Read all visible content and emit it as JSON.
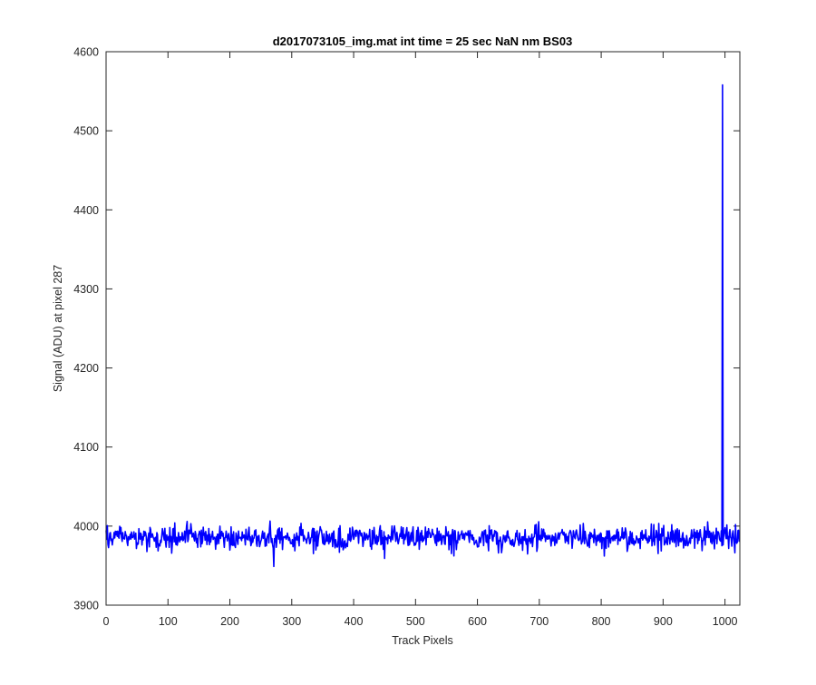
{
  "chart_data": {
    "type": "line",
    "title": "d2017073105_img.mat int time = 25 sec  NaN nm BS03",
    "xlabel": "Track Pixels",
    "ylabel": "Signal (ADU) at pixel 287",
    "xlim": [
      0,
      1024
    ],
    "ylim": [
      3900,
      4600
    ],
    "xticks": [
      0,
      100,
      200,
      300,
      400,
      500,
      600,
      700,
      800,
      900,
      1000
    ],
    "yticks": [
      3900,
      4000,
      4100,
      4200,
      4300,
      4400,
      4500,
      4600
    ],
    "grid": false,
    "line_color": "#0000ff",
    "series": [
      {
        "baseline_mean": 3985,
        "noise_range": [
          3948,
          4010
        ],
        "n_points": 1024,
        "min_point": {
          "x": 271,
          "y": 3949
        },
        "spike": {
          "x": 996,
          "y": 4558
        }
      }
    ]
  }
}
